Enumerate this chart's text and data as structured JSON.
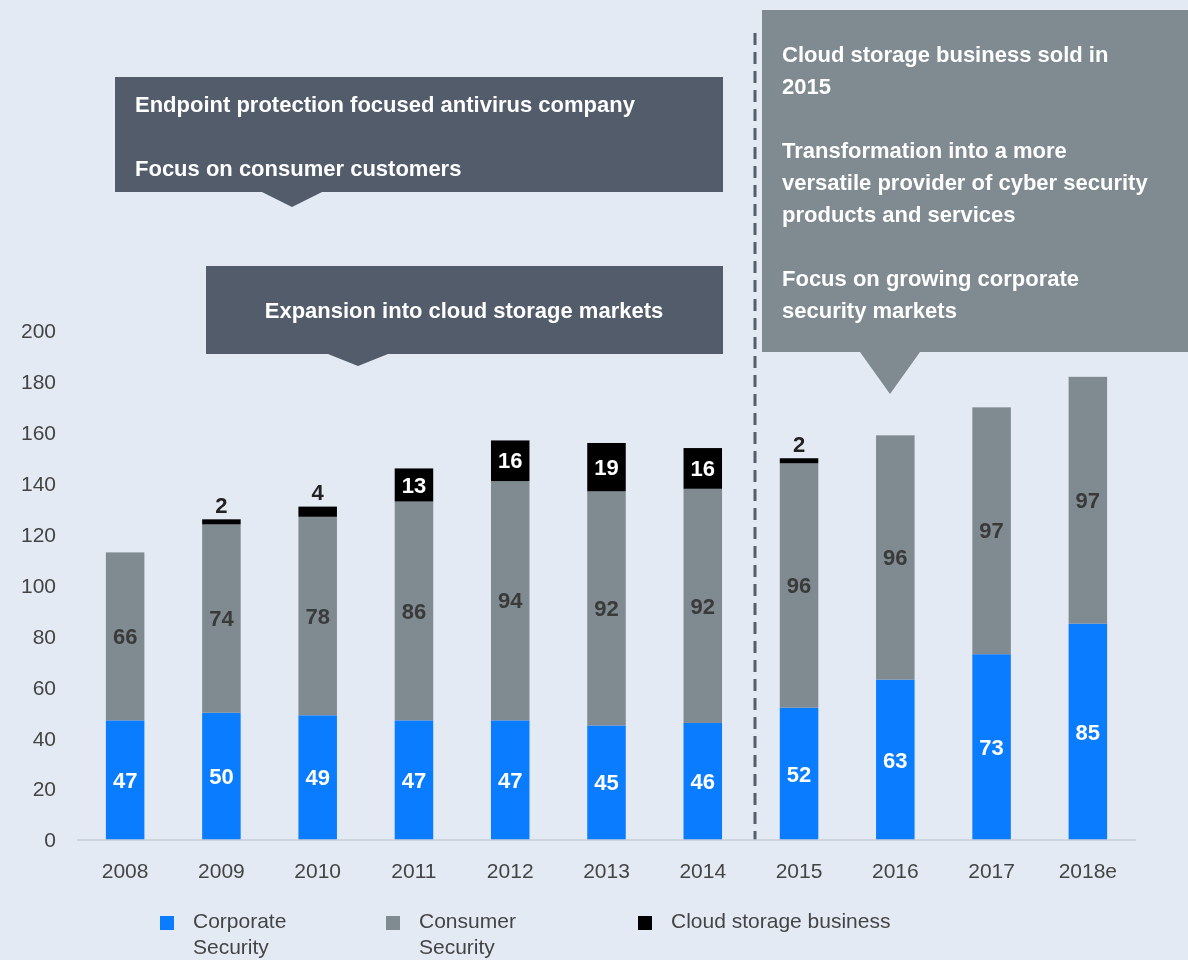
{
  "chart_data": {
    "type": "bar",
    "stacked": true,
    "categories": [
      "2008",
      "2009",
      "2010",
      "2011",
      "2012",
      "2013",
      "2014",
      "2015",
      "2016",
      "2017",
      "2018e"
    ],
    "series": [
      {
        "name": "Corporate Security",
        "color": "#0a7cff",
        "values": [
          47,
          50,
          49,
          47,
          47,
          45,
          46,
          52,
          63,
          73,
          85
        ]
      },
      {
        "name": "Consumer Security",
        "color": "#7f8a91",
        "values": [
          66,
          74,
          78,
          86,
          94,
          92,
          92,
          96,
          96,
          97,
          97
        ]
      },
      {
        "name": "Cloud storage business",
        "color": "#000000",
        "values": [
          null,
          2,
          4,
          13,
          16,
          19,
          16,
          2,
          null,
          null,
          null
        ]
      }
    ],
    "ylim": [
      0,
      200
    ],
    "yticks": [
      0,
      20,
      40,
      60,
      80,
      100,
      120,
      140,
      160,
      180,
      200
    ],
    "data_labels": true,
    "legend": "bottom",
    "annotations": [
      "Endpoint protection focused antivirus company",
      "Focus on consumer customers",
      "Expansion into cloud storage markets",
      "Cloud storage business sold in 2015",
      "Transformation into a more versatile provider of cyber security products and services",
      "Focus on growing corporate security markets"
    ]
  }
}
